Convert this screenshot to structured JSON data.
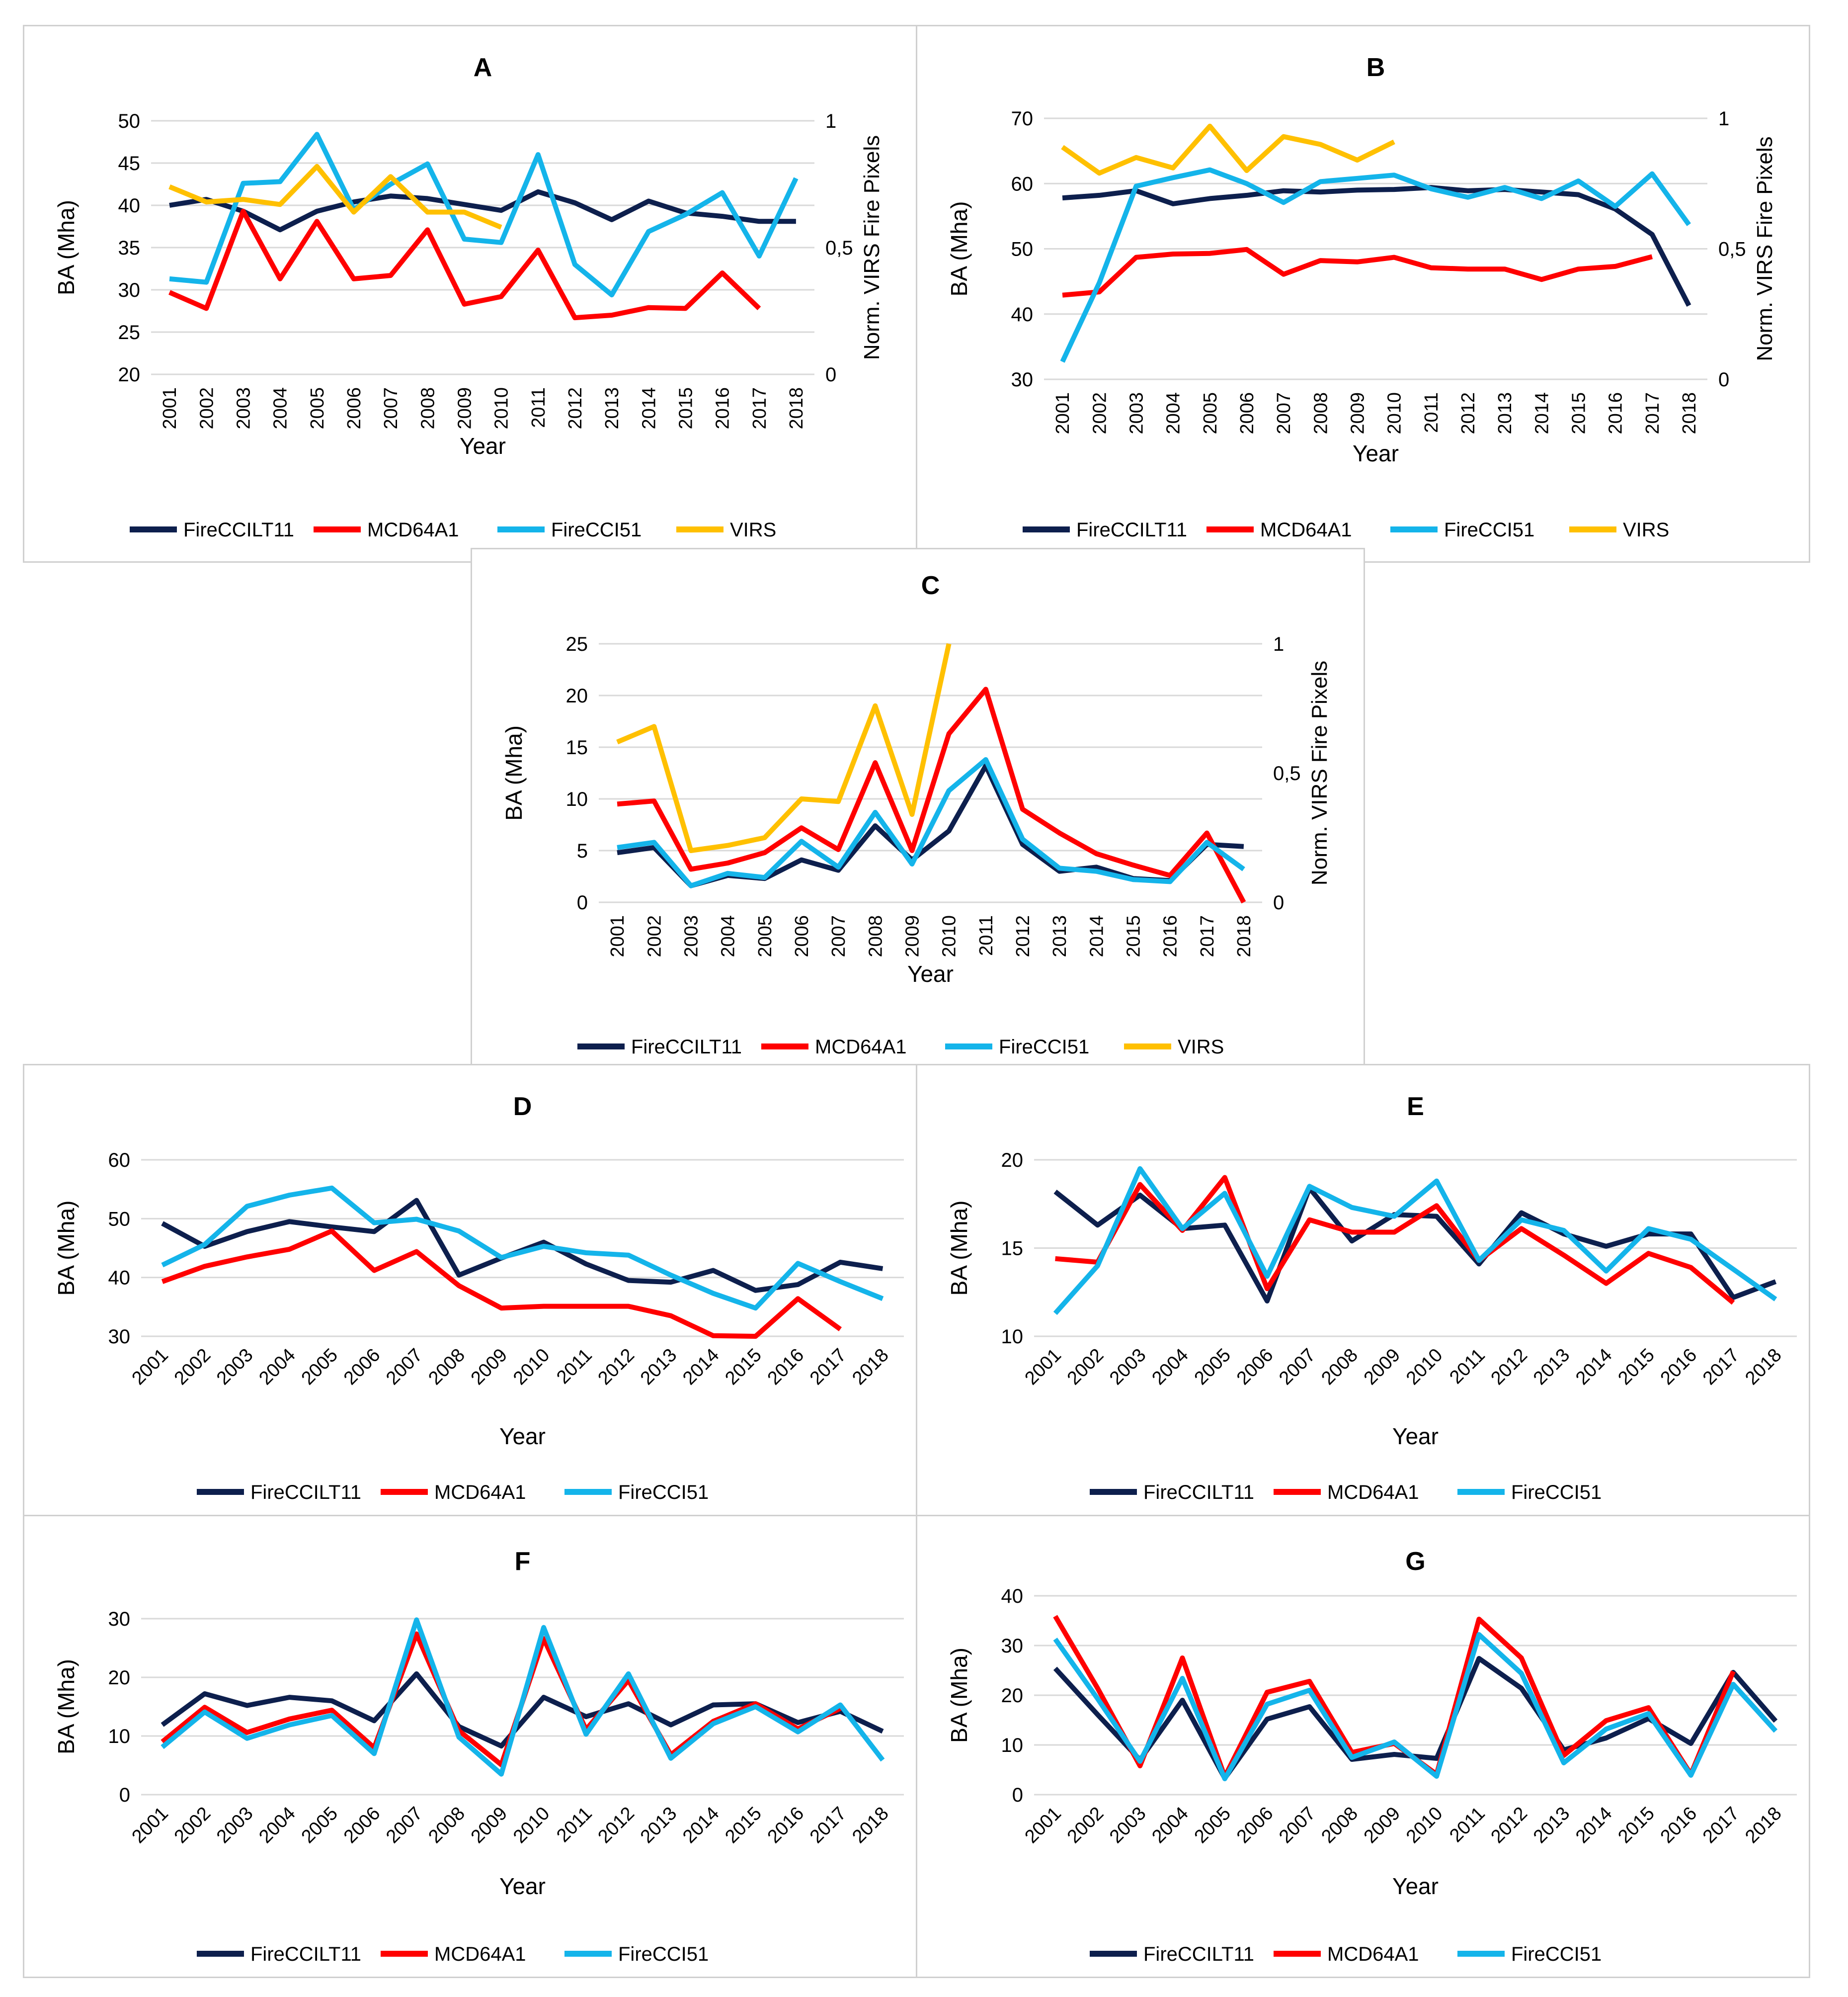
{
  "figure_title": "Burned area time series, panels A-G",
  "series_styles": [
    {
      "name": "FireCCILT11",
      "color": "#0d1f4d"
    },
    {
      "name": "MCD64A1",
      "color": "#ff0000"
    },
    {
      "name": "FireCCI51",
      "color": "#14b4ea"
    },
    {
      "name": "VIRS",
      "color": "#ffc000"
    }
  ],
  "chart_data": [
    {
      "id": "A",
      "type": "line",
      "title": "A",
      "xlabel": "Year",
      "ylabel": "BA (Mha)",
      "y2label": "Norm. VIRS Fire Pixels",
      "ylim": [
        20,
        50
      ],
      "yticks": [
        20,
        25,
        30,
        35,
        40,
        45,
        50
      ],
      "y2lim": [
        0,
        1
      ],
      "y2ticks": [
        0,
        0.5,
        1
      ],
      "y2ticklabels": [
        "0",
        "0,5",
        "1"
      ],
      "categories": [
        "2001",
        "2002",
        "2003",
        "2004",
        "2005",
        "2006",
        "2007",
        "2008",
        "2009",
        "2010",
        "2011",
        "2012",
        "2013",
        "2014",
        "2015",
        "2016",
        "2017",
        "2018"
      ],
      "series": [
        {
          "name": "FireCCILT11",
          "axis": "left",
          "values": [
            40,
            40.7,
            39.3,
            37.1,
            39.3,
            40.4,
            41.1,
            40.8,
            40.1,
            39.4,
            41.6,
            40.3,
            38.3,
            40.5,
            39.1,
            38.7,
            38.1,
            38.1
          ]
        },
        {
          "name": "MCD64A1",
          "axis": "left",
          "values": [
            29.7,
            27.8,
            39.3,
            31.3,
            38.1,
            31.3,
            31.7,
            37.1,
            28.3,
            29.2,
            34.7,
            26.7,
            27.0,
            27.9,
            27.8,
            32.0,
            27.8,
            null
          ]
        },
        {
          "name": "FireCCI51",
          "axis": "left",
          "values": [
            31.3,
            30.9,
            42.6,
            42.8,
            48.4,
            39.5,
            42.5,
            44.9,
            36.0,
            35.6,
            46.0,
            33.0,
            29.4,
            36.9,
            38.9,
            41.5,
            34.0,
            43.2
          ]
        },
        {
          "name": "VIRS",
          "axis": "right",
          "values": [
            0.74,
            0.68,
            0.69,
            0.67,
            0.82,
            0.64,
            0.78,
            0.64,
            0.64,
            0.58,
            null,
            null,
            null,
            null,
            null,
            null,
            null,
            null
          ]
        }
      ]
    },
    {
      "id": "B",
      "type": "line",
      "title": "B",
      "xlabel": "Year",
      "ylabel": "BA (Mha)",
      "y2label": "Norm. VIRS Fire Pixels",
      "ylim": [
        30,
        70
      ],
      "yticks": [
        30,
        40,
        50,
        60,
        70
      ],
      "y2lim": [
        0,
        1
      ],
      "y2ticks": [
        0,
        0.5,
        1
      ],
      "y2ticklabels": [
        "0",
        "0,5",
        "1"
      ],
      "categories": [
        "2001",
        "2002",
        "2003",
        "2004",
        "2005",
        "2006",
        "2007",
        "2008",
        "2009",
        "2010",
        "2011",
        "2012",
        "2013",
        "2014",
        "2015",
        "2016",
        "2017",
        "2018"
      ],
      "series": [
        {
          "name": "FireCCILT11",
          "axis": "left",
          "values": [
            57.8,
            58.2,
            58.9,
            56.9,
            57.7,
            58.2,
            58.9,
            58.7,
            59.0,
            59.1,
            59.4,
            58.9,
            59.1,
            58.7,
            58.3,
            56.1,
            52.2,
            41.3
          ]
        },
        {
          "name": "MCD64A1",
          "axis": "left",
          "values": [
            42.9,
            43.4,
            48.7,
            49.2,
            49.3,
            49.9,
            46.1,
            48.2,
            48.0,
            48.7,
            47.1,
            46.9,
            46.9,
            45.3,
            46.9,
            47.3,
            48.8,
            null
          ]
        },
        {
          "name": "FireCCI51",
          "axis": "left",
          "values": [
            32.7,
            44.8,
            59.6,
            60.9,
            62.1,
            60.0,
            57.1,
            60.3,
            60.8,
            61.3,
            59.2,
            57.9,
            59.4,
            57.7,
            60.4,
            56.5,
            61.5,
            53.7
          ]
        },
        {
          "name": "VIRS",
          "axis": "right",
          "values": [
            0.89,
            0.79,
            0.85,
            0.81,
            0.97,
            0.8,
            0.93,
            0.9,
            0.84,
            0.91,
            null,
            null,
            null,
            null,
            null,
            null,
            null,
            null
          ]
        }
      ]
    },
    {
      "id": "C",
      "type": "line",
      "title": "C",
      "xlabel": "Year",
      "ylabel": "BA (Mha)",
      "y2label": "Norm. VIRS Fire Pixels",
      "ylim": [
        0,
        25
      ],
      "yticks": [
        0,
        5,
        10,
        15,
        20,
        25
      ],
      "y2lim": [
        0,
        1
      ],
      "y2ticks": [
        0,
        0.5,
        1
      ],
      "y2ticklabels": [
        "0",
        "0,5",
        "1"
      ],
      "categories": [
        "2001",
        "2002",
        "2003",
        "2004",
        "2005",
        "2006",
        "2007",
        "2008",
        "2009",
        "2010",
        "2011",
        "2012",
        "2013",
        "2014",
        "2015",
        "2016",
        "2017",
        "2018"
      ],
      "series": [
        {
          "name": "FireCCILT11",
          "axis": "left",
          "values": [
            4.8,
            5.3,
            1.6,
            2.6,
            2.3,
            4.1,
            3.1,
            7.4,
            4.1,
            6.9,
            13.2,
            5.6,
            3.0,
            3.4,
            2.3,
            2.1,
            5.6,
            5.4
          ]
        },
        {
          "name": "MCD64A1",
          "axis": "left",
          "values": [
            9.5,
            9.8,
            3.2,
            3.8,
            4.8,
            7.2,
            5.1,
            13.5,
            5.0,
            16.3,
            20.6,
            9.0,
            6.7,
            4.7,
            3.6,
            2.6,
            6.7,
            0.0
          ]
        },
        {
          "name": "FireCCI51",
          "axis": "left",
          "values": [
            5.3,
            5.8,
            1.6,
            2.8,
            2.4,
            5.9,
            3.4,
            8.7,
            3.7,
            10.8,
            13.8,
            6.1,
            3.3,
            3.0,
            2.2,
            2.0,
            5.8,
            3.2
          ]
        },
        {
          "name": "VIRS",
          "axis": "right",
          "values": [
            0.62,
            0.68,
            0.2,
            0.22,
            0.25,
            0.4,
            0.39,
            0.76,
            0.34,
            1.0,
            null,
            null,
            null,
            null,
            null,
            null,
            null,
            null
          ]
        }
      ]
    },
    {
      "id": "D",
      "type": "line",
      "title": "D",
      "xlabel": "Year",
      "ylabel": "BA (Mha)",
      "ylim": [
        30,
        60
      ],
      "yticks": [
        30,
        40,
        50,
        60
      ],
      "categories": [
        "2001",
        "2002",
        "2003",
        "2004",
        "2005",
        "2006",
        "2007",
        "2008",
        "2009",
        "2010",
        "2011",
        "2012",
        "2013",
        "2014",
        "2015",
        "2016",
        "2017",
        "2018"
      ],
      "series": [
        {
          "name": "FireCCILT11",
          "axis": "left",
          "values": [
            49.2,
            45.3,
            47.8,
            49.5,
            48.6,
            47.8,
            53.1,
            40.4,
            43.3,
            46.0,
            42.3,
            39.5,
            39.2,
            41.2,
            37.8,
            38.8,
            42.6,
            41.5
          ]
        },
        {
          "name": "MCD64A1",
          "axis": "left",
          "values": [
            39.3,
            41.9,
            43.5,
            44.8,
            47.9,
            41.2,
            44.4,
            38.6,
            34.8,
            35.1,
            35.1,
            35.1,
            33.5,
            30.1,
            30.0,
            36.4,
            31.2,
            null
          ]
        },
        {
          "name": "FireCCI51",
          "axis": "left",
          "values": [
            42.1,
            45.6,
            52.1,
            54.0,
            55.2,
            49.3,
            49.9,
            47.9,
            43.4,
            45.3,
            44.2,
            43.8,
            40.4,
            37.3,
            34.8,
            42.4,
            39.3,
            36.4
          ]
        }
      ]
    },
    {
      "id": "E",
      "type": "line",
      "title": "E",
      "xlabel": "Year",
      "ylabel": "BA (Mha)",
      "ylim": [
        10,
        20
      ],
      "yticks": [
        10,
        15,
        20
      ],
      "categories": [
        "2001",
        "2002",
        "2003",
        "2004",
        "2005",
        "2006",
        "2007",
        "2008",
        "2009",
        "2010",
        "2011",
        "2012",
        "2013",
        "2014",
        "2015",
        "2016",
        "2017",
        "2018"
      ],
      "series": [
        {
          "name": "FireCCILT11",
          "axis": "left",
          "values": [
            18.2,
            16.3,
            18.0,
            16.1,
            16.3,
            12.0,
            18.4,
            15.4,
            16.9,
            16.8,
            14.1,
            17.0,
            15.8,
            15.1,
            15.8,
            15.8,
            12.2,
            13.1
          ]
        },
        {
          "name": "MCD64A1",
          "axis": "left",
          "values": [
            14.4,
            14.2,
            18.6,
            16.0,
            19.0,
            12.7,
            16.6,
            15.9,
            15.9,
            17.4,
            14.3,
            16.1,
            14.6,
            13.0,
            14.7,
            13.9,
            11.9,
            null
          ]
        },
        {
          "name": "FireCCI51",
          "axis": "left",
          "values": [
            11.3,
            14.0,
            19.5,
            16.1,
            18.1,
            13.4,
            18.5,
            17.3,
            16.8,
            18.8,
            14.3,
            16.6,
            16.0,
            13.7,
            16.1,
            15.5,
            13.8,
            12.1
          ]
        }
      ]
    },
    {
      "id": "F",
      "type": "line",
      "title": "F",
      "xlabel": "Year",
      "ylabel": "BA (Mha)",
      "ylim": [
        0,
        30
      ],
      "yticks": [
        0,
        10,
        20,
        30
      ],
      "categories": [
        "2001",
        "2002",
        "2003",
        "2004",
        "2005",
        "2006",
        "2007",
        "2008",
        "2009",
        "2010",
        "2011",
        "2012",
        "2013",
        "2014",
        "2015",
        "2016",
        "2017",
        "2018"
      ],
      "series": [
        {
          "name": "FireCCILT11",
          "axis": "left",
          "values": [
            11.9,
            17.2,
            15.2,
            16.6,
            16.0,
            12.6,
            20.6,
            11.6,
            8.3,
            16.6,
            13.3,
            15.5,
            11.9,
            15.3,
            15.5,
            12.3,
            14.2,
            10.8
          ]
        },
        {
          "name": "MCD64A1",
          "axis": "left",
          "values": [
            9.0,
            14.9,
            10.6,
            12.9,
            14.4,
            8.0,
            27.4,
            10.9,
            5.1,
            26.6,
            11.1,
            19.5,
            6.8,
            12.5,
            15.5,
            11.2,
            14.7,
            null
          ]
        },
        {
          "name": "FireCCI51",
          "axis": "left",
          "values": [
            8.1,
            14.1,
            9.6,
            11.9,
            13.5,
            7.0,
            29.8,
            9.8,
            3.5,
            28.5,
            10.3,
            20.6,
            6.2,
            12.1,
            15.0,
            10.7,
            15.3,
            5.9
          ]
        }
      ]
    },
    {
      "id": "G",
      "type": "line",
      "title": "G",
      "xlabel": "Year",
      "ylabel": "BA (Mha)",
      "ylim": [
        0,
        40
      ],
      "yticks": [
        0,
        10,
        20,
        30,
        40
      ],
      "categories": [
        "2001",
        "2002",
        "2003",
        "2004",
        "2005",
        "2006",
        "2007",
        "2008",
        "2009",
        "2010",
        "2011",
        "2012",
        "2013",
        "2014",
        "2015",
        "2016",
        "2017",
        "2018"
      ],
      "series": [
        {
          "name": "FireCCILT11",
          "axis": "left",
          "values": [
            25.4,
            16.1,
            7.0,
            19.0,
            3.3,
            15.2,
            17.7,
            7.1,
            8.1,
            7.3,
            27.4,
            21.4,
            9.0,
            11.4,
            15.3,
            10.3,
            24.6,
            14.8
          ]
        },
        {
          "name": "MCD64A1",
          "axis": "left",
          "values": [
            35.9,
            21.4,
            5.8,
            27.5,
            3.6,
            20.6,
            22.8,
            8.5,
            10.3,
            4.1,
            35.3,
            27.5,
            7.9,
            14.9,
            17.5,
            4.1,
            24.8,
            null
          ]
        },
        {
          "name": "FireCCI51",
          "axis": "left",
          "values": [
            31.3,
            19.3,
            6.7,
            23.4,
            3.2,
            18.2,
            21.0,
            7.5,
            10.6,
            3.7,
            32.2,
            24.4,
            6.4,
            13.2,
            16.3,
            3.9,
            22.2,
            12.8
          ]
        }
      ]
    }
  ]
}
